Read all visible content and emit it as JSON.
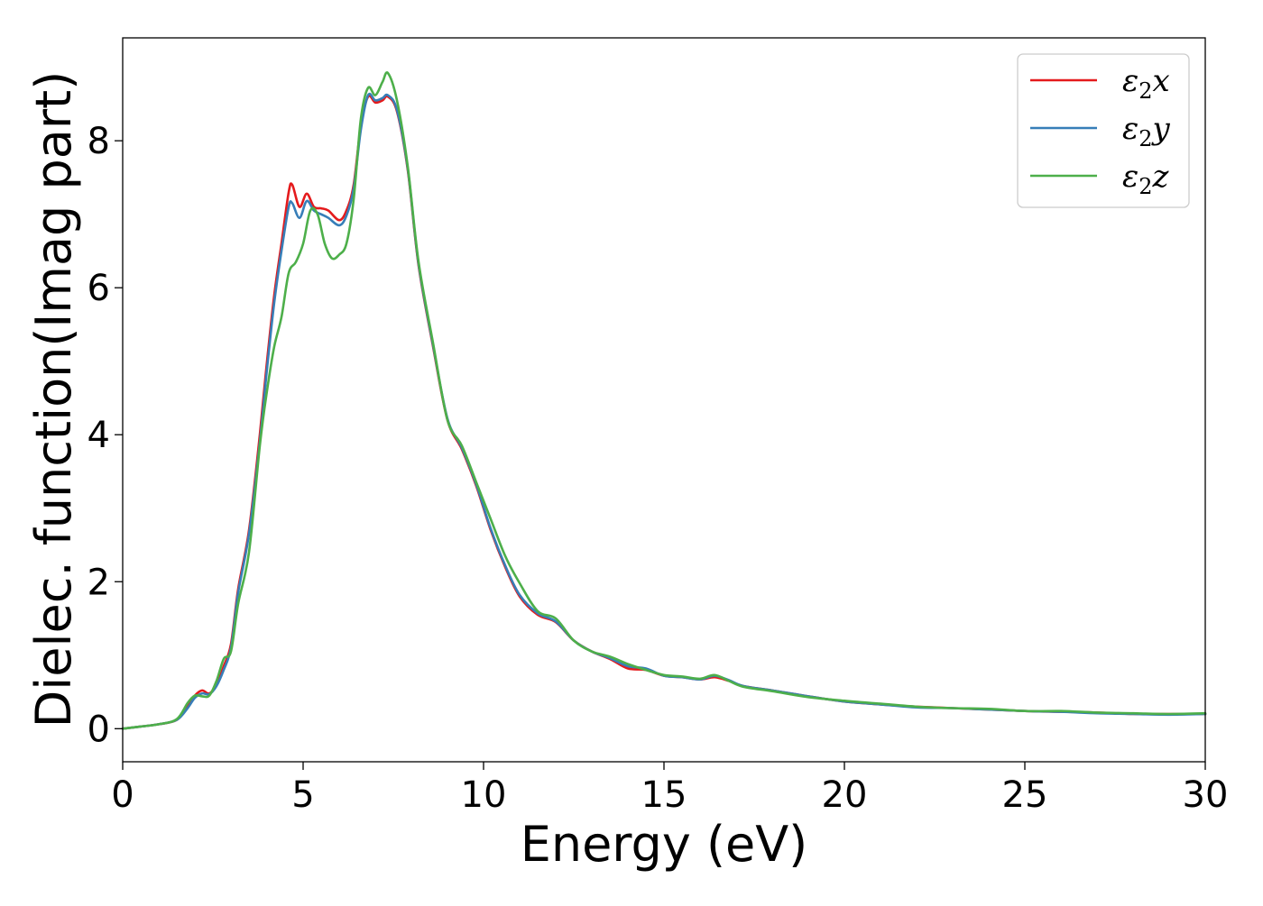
{
  "chart_data": {
    "type": "line",
    "title": "",
    "xlabel": "Energy (eV)",
    "ylabel": "Dielec. function(Imag part)",
    "xlim": [
      0,
      30
    ],
    "ylim": [
      -0.45,
      9.4
    ],
    "xticks": [
      0,
      5,
      10,
      15,
      20,
      25,
      30
    ],
    "yticks": [
      0,
      2,
      4,
      6,
      8
    ],
    "grid": false,
    "legend": "top-right",
    "series": [
      {
        "name": "ε₂x",
        "legend_base": "ε",
        "legend_sub": "2",
        "legend_suffix": "x",
        "color": "#e41a1c",
        "x": [
          0,
          0.5,
          1.0,
          1.5,
          1.8,
          2.0,
          2.2,
          2.4,
          2.6,
          2.8,
          3.0,
          3.2,
          3.5,
          3.8,
          4.0,
          4.2,
          4.4,
          4.6,
          4.7,
          4.9,
          5.1,
          5.3,
          5.5,
          5.7,
          6.0,
          6.2,
          6.4,
          6.6,
          6.8,
          7.0,
          7.2,
          7.35,
          7.6,
          7.9,
          8.2,
          8.6,
          9.0,
          9.4,
          9.8,
          10.2,
          10.6,
          11.0,
          11.5,
          12.0,
          12.5,
          13.0,
          13.5,
          14.0,
          14.5,
          15.0,
          15.5,
          16.0,
          16.4,
          16.8,
          17.2,
          18.0,
          19.0,
          20.0,
          21.0,
          22.0,
          23.0,
          24.0,
          25.0,
          26.0,
          27.0,
          28.0,
          29.0,
          30.0
        ],
        "y": [
          0,
          0.03,
          0.06,
          0.12,
          0.3,
          0.45,
          0.52,
          0.48,
          0.6,
          0.85,
          1.15,
          1.9,
          2.7,
          4.0,
          5.0,
          5.9,
          6.6,
          7.3,
          7.4,
          7.1,
          7.28,
          7.1,
          7.08,
          7.05,
          6.92,
          7.05,
          7.4,
          8.2,
          8.6,
          8.52,
          8.55,
          8.6,
          8.4,
          7.6,
          6.3,
          5.2,
          4.2,
          3.8,
          3.3,
          2.7,
          2.2,
          1.8,
          1.55,
          1.45,
          1.2,
          1.05,
          0.95,
          0.82,
          0.8,
          0.72,
          0.7,
          0.67,
          0.7,
          0.65,
          0.58,
          0.52,
          0.44,
          0.37,
          0.33,
          0.3,
          0.28,
          0.26,
          0.24,
          0.23,
          0.22,
          0.2,
          0.2,
          0.2
        ]
      },
      {
        "name": "ε₂y",
        "legend_base": "ε",
        "legend_sub": "2",
        "legend_suffix": "y",
        "color": "#377eb8",
        "x": [
          0,
          0.5,
          1.0,
          1.5,
          1.8,
          2.0,
          2.2,
          2.4,
          2.6,
          2.8,
          3.0,
          3.2,
          3.5,
          3.8,
          4.0,
          4.2,
          4.4,
          4.6,
          4.7,
          4.9,
          5.1,
          5.3,
          5.5,
          5.7,
          6.0,
          6.2,
          6.4,
          6.6,
          6.8,
          7.0,
          7.2,
          7.35,
          7.6,
          7.9,
          8.2,
          8.6,
          9.0,
          9.4,
          9.8,
          10.2,
          10.6,
          11.0,
          11.5,
          12.0,
          12.5,
          13.0,
          13.5,
          14.0,
          14.5,
          15.0,
          15.5,
          16.0,
          16.4,
          16.8,
          17.2,
          18.0,
          19.0,
          20.0,
          21.0,
          22.0,
          23.0,
          24.0,
          25.0,
          26.0,
          27.0,
          28.0,
          29.0,
          30.0
        ],
        "y": [
          0,
          0.03,
          0.06,
          0.12,
          0.28,
          0.42,
          0.48,
          0.47,
          0.58,
          0.8,
          1.1,
          1.85,
          2.65,
          3.9,
          4.9,
          5.8,
          6.5,
          7.1,
          7.15,
          6.95,
          7.18,
          7.05,
          7.0,
          6.95,
          6.85,
          6.98,
          7.35,
          8.15,
          8.62,
          8.55,
          8.58,
          8.62,
          8.42,
          7.62,
          6.32,
          5.22,
          4.22,
          3.82,
          3.32,
          2.72,
          2.22,
          1.82,
          1.57,
          1.46,
          1.2,
          1.05,
          0.96,
          0.85,
          0.82,
          0.72,
          0.7,
          0.67,
          0.72,
          0.66,
          0.58,
          0.52,
          0.44,
          0.37,
          0.33,
          0.29,
          0.28,
          0.26,
          0.24,
          0.23,
          0.21,
          0.2,
          0.19,
          0.2
        ]
      },
      {
        "name": "ε₂z",
        "legend_base": "ε",
        "legend_sub": "2",
        "legend_suffix": "z",
        "color": "#4daf4a",
        "x": [
          0,
          0.5,
          1.0,
          1.5,
          1.8,
          2.0,
          2.2,
          2.4,
          2.6,
          2.8,
          3.0,
          3.2,
          3.5,
          3.8,
          4.0,
          4.2,
          4.4,
          4.6,
          4.8,
          5.0,
          5.2,
          5.4,
          5.6,
          5.8,
          6.0,
          6.2,
          6.4,
          6.6,
          6.8,
          7.0,
          7.2,
          7.35,
          7.6,
          7.9,
          8.2,
          8.6,
          9.0,
          9.4,
          9.8,
          10.2,
          10.6,
          11.0,
          11.5,
          12.0,
          12.5,
          13.0,
          13.5,
          14.0,
          14.5,
          15.0,
          15.5,
          16.0,
          16.4,
          16.8,
          17.2,
          18.0,
          19.0,
          20.0,
          21.0,
          22.0,
          23.0,
          24.0,
          25.0,
          26.0,
          27.0,
          28.0,
          29.0,
          30.0
        ],
        "y": [
          0,
          0.03,
          0.06,
          0.13,
          0.35,
          0.45,
          0.44,
          0.45,
          0.65,
          0.95,
          1.05,
          1.7,
          2.4,
          3.85,
          4.6,
          5.2,
          5.6,
          6.2,
          6.35,
          6.6,
          7.05,
          7.0,
          6.6,
          6.4,
          6.45,
          6.6,
          7.2,
          8.3,
          8.72,
          8.62,
          8.8,
          8.92,
          8.55,
          7.65,
          6.35,
          5.25,
          4.2,
          3.85,
          3.35,
          2.85,
          2.35,
          1.98,
          1.6,
          1.5,
          1.2,
          1.05,
          0.98,
          0.88,
          0.8,
          0.73,
          0.71,
          0.68,
          0.73,
          0.65,
          0.57,
          0.51,
          0.43,
          0.38,
          0.34,
          0.3,
          0.28,
          0.27,
          0.24,
          0.24,
          0.22,
          0.21,
          0.2,
          0.21
        ]
      }
    ]
  }
}
